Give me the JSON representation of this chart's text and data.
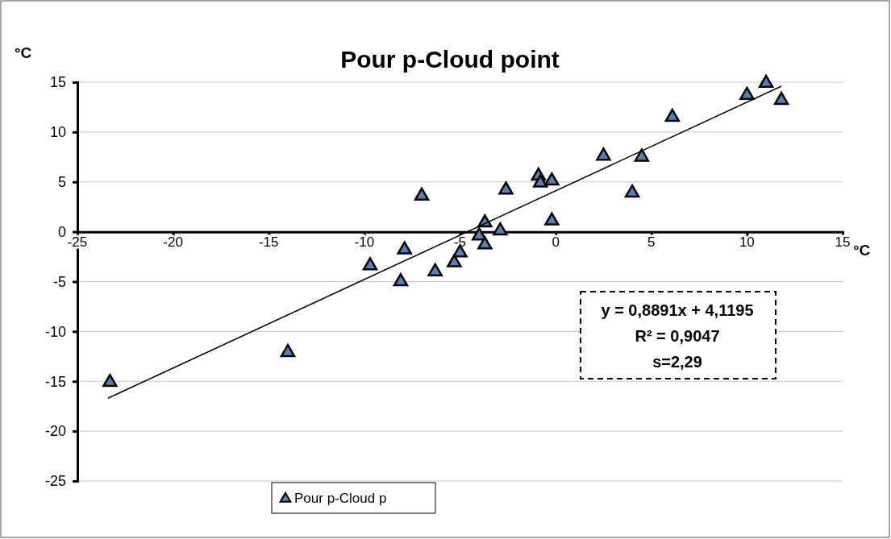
{
  "chart_data": {
    "type": "scatter",
    "title": "Pour p-Cloud point",
    "xlabel": "°C",
    "ylabel": "°C",
    "xlim": [
      -25,
      15
    ],
    "xticks": [
      -25,
      -20,
      -15,
      -10,
      -5,
      0,
      5,
      10,
      15
    ],
    "ylim": [
      -25,
      15
    ],
    "yticks": [
      -25,
      -20,
      -15,
      -10,
      -5,
      0,
      5,
      10,
      15
    ],
    "grid": "y",
    "legend": "bottom",
    "marker": "triangle",
    "series": [
      {
        "name": "Pour p-Cloud p",
        "color": "#4f81bd",
        "x": [
          -23.3,
          -14.0,
          -9.7,
          -7.9,
          -8.1,
          -7.0,
          -6.3,
          -5.3,
          -5.0,
          -3.7,
          -4.0,
          -3.7,
          -2.9,
          -2.6,
          -0.9,
          -0.8,
          -0.2,
          -0.2,
          2.5,
          4.5,
          4.0,
          6.1,
          10.0,
          11.0,
          11.8
        ],
        "values": [
          -15.1,
          -12.1,
          -3.4,
          -1.8,
          -5.0,
          3.6,
          -4.0,
          -3.1,
          -2.1,
          0.9,
          -0.4,
          -1.3,
          0.1,
          4.2,
          5.6,
          4.9,
          5.1,
          1.1,
          7.6,
          7.5,
          3.9,
          11.5,
          13.7,
          14.9,
          13.2
        ]
      },
      {
        "type": "line",
        "color": "#000000",
        "marker": "none",
        "line_style": "solid",
        "x": [
          -23.4,
          11.8
        ],
        "values": [
          -16.7,
          14.6
        ]
      }
    ],
    "annotations": [
      "y = 0,8891x + 4,1195",
      "R² = 0,9047",
      "s=2,29"
    ]
  }
}
